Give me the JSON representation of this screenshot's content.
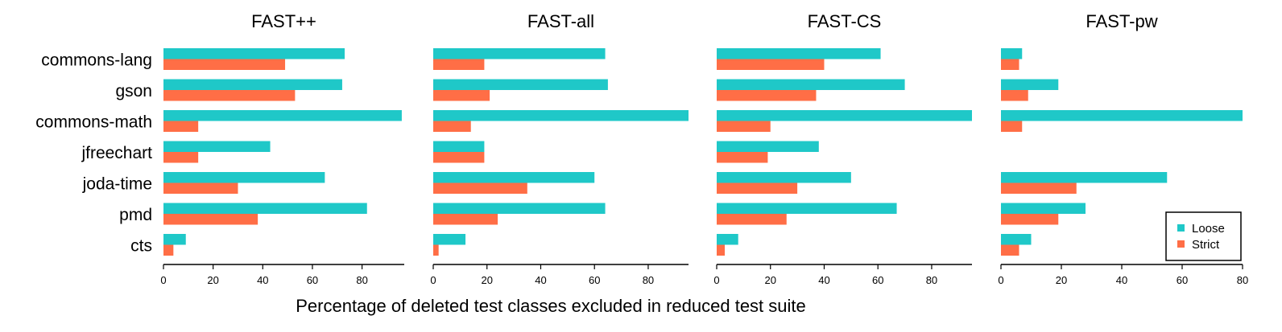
{
  "chart_data": {
    "type": "bar",
    "orientation": "horizontal",
    "xlabel": "Percentage of deleted test classes excluded in reduced test suite",
    "categories": [
      "commons-lang",
      "gson",
      "commons-math",
      "jfreechart",
      "joda-time",
      "pmd",
      "cts"
    ],
    "legend": {
      "position": "bottom-right",
      "entries": [
        "Loose",
        "Strict"
      ]
    },
    "colors": {
      "Loose": "#1fc8c8",
      "Strict": "#ff6e46"
    },
    "grid": false,
    "panels": [
      {
        "title": "FAST++",
        "xlim": [
          0,
          97
        ],
        "xticks": [
          "0",
          "20",
          "40",
          "60",
          "80"
        ],
        "series": [
          {
            "name": "Loose",
            "values": [
              73,
              72,
              96,
              43,
              65,
              82,
              9
            ]
          },
          {
            "name": "Strict",
            "values": [
              49,
              53,
              14,
              14,
              30,
              38,
              4
            ]
          }
        ]
      },
      {
        "title": "FAST-all",
        "xlim": [
          0,
          95
        ],
        "xticks": [
          "0",
          "20",
          "40",
          "60",
          "80"
        ],
        "series": [
          {
            "name": "Loose",
            "values": [
              64,
              65,
              95,
              19,
              60,
              64,
              12
            ]
          },
          {
            "name": "Strict",
            "values": [
              19,
              21,
              14,
              19,
              35,
              24,
              2
            ]
          }
        ]
      },
      {
        "title": "FAST-CS",
        "xlim": [
          0,
          95
        ],
        "xticks": [
          "0",
          "20",
          "40",
          "60",
          "80"
        ],
        "series": [
          {
            "name": "Loose",
            "values": [
              61,
              70,
              95,
              38,
              50,
              67,
              8
            ]
          },
          {
            "name": "Strict",
            "values": [
              40,
              37,
              20,
              19,
              30,
              26,
              3
            ]
          }
        ]
      },
      {
        "title": "FAST-pw",
        "xlim": [
          0,
          80
        ],
        "xticks": [
          "0",
          "20",
          "40",
          "60",
          "80"
        ],
        "series": [
          {
            "name": "Loose",
            "values": [
              7,
              19,
              80,
              0,
              55,
              28,
              10
            ]
          },
          {
            "name": "Strict",
            "values": [
              6,
              9,
              7,
              0,
              25,
              19,
              6
            ]
          }
        ]
      }
    ]
  }
}
